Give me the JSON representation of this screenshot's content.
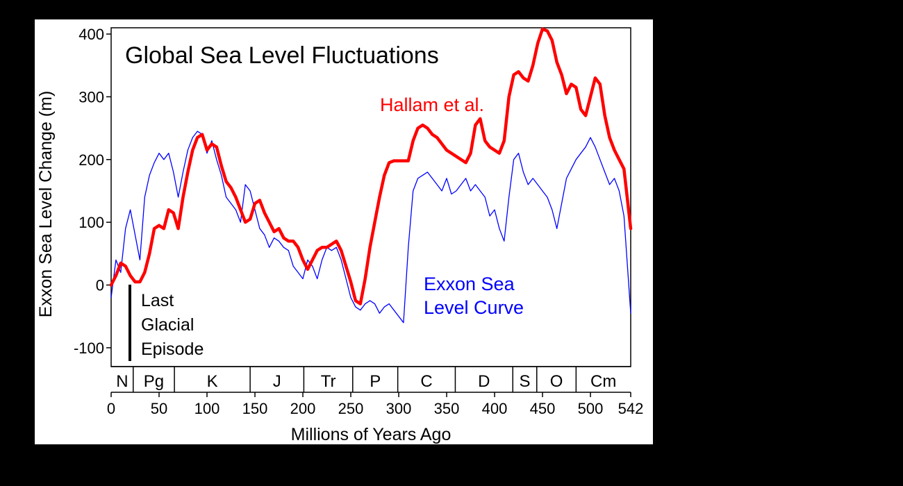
{
  "chart_data": {
    "type": "line",
    "title": "Global Sea Level Fluctuations",
    "xlabel": "Millions of Years Ago",
    "ylabel": "Exxon Sea Level Change (m)",
    "xlim": [
      0,
      542
    ],
    "ylim": [
      -130,
      410
    ],
    "x_ticks": [
      0,
      50,
      100,
      150,
      200,
      250,
      300,
      350,
      400,
      450,
      500,
      542
    ],
    "y_ticks": [
      -100,
      0,
      100,
      200,
      300,
      400
    ],
    "grid": false,
    "periods": [
      {
        "label": "N",
        "start": 0,
        "end": 23
      },
      {
        "label": "Pg",
        "start": 23,
        "end": 66
      },
      {
        "label": "K",
        "start": 66,
        "end": 145
      },
      {
        "label": "J",
        "start": 145,
        "end": 201
      },
      {
        "label": "Tr",
        "start": 201,
        "end": 252
      },
      {
        "label": "P",
        "start": 252,
        "end": 299
      },
      {
        "label": "C",
        "start": 299,
        "end": 359
      },
      {
        "label": "D",
        "start": 359,
        "end": 419
      },
      {
        "label": "S",
        "start": 419,
        "end": 444
      },
      {
        "label": "O",
        "start": 444,
        "end": 485
      },
      {
        "label": "Cm",
        "start": 485,
        "end": 542
      }
    ],
    "series": [
      {
        "name": "Hallam et al.",
        "color": "#ff0000",
        "x": [
          0,
          5,
          10,
          15,
          20,
          25,
          30,
          35,
          40,
          45,
          50,
          55,
          60,
          65,
          70,
          75,
          80,
          85,
          90,
          95,
          100,
          105,
          110,
          115,
          120,
          125,
          130,
          135,
          140,
          145,
          150,
          155,
          160,
          165,
          170,
          175,
          180,
          185,
          190,
          195,
          200,
          205,
          210,
          215,
          220,
          225,
          230,
          235,
          240,
          245,
          250,
          255,
          260,
          265,
          270,
          275,
          280,
          285,
          290,
          295,
          300,
          305,
          310,
          315,
          320,
          325,
          330,
          335,
          340,
          345,
          350,
          355,
          360,
          365,
          370,
          375,
          380,
          385,
          390,
          395,
          400,
          405,
          410,
          415,
          420,
          425,
          430,
          435,
          440,
          445,
          450,
          455,
          460,
          465,
          470,
          475,
          480,
          485,
          490,
          495,
          500,
          505,
          510,
          515,
          520,
          525,
          530,
          535,
          542
        ],
        "values": [
          0,
          15,
          35,
          30,
          15,
          5,
          5,
          20,
          50,
          90,
          95,
          90,
          120,
          115,
          90,
          140,
          180,
          215,
          235,
          240,
          215,
          225,
          220,
          190,
          165,
          155,
          140,
          120,
          100,
          105,
          130,
          135,
          115,
          100,
          85,
          90,
          75,
          70,
          70,
          60,
          40,
          25,
          40,
          55,
          60,
          60,
          65,
          70,
          55,
          30,
          5,
          -25,
          -30,
          10,
          60,
          100,
          140,
          175,
          195,
          198,
          198,
          198,
          198,
          230,
          250,
          255,
          250,
          240,
          235,
          225,
          215,
          210,
          205,
          200,
          195,
          210,
          255,
          265,
          230,
          220,
          215,
          210,
          230,
          300,
          335,
          340,
          330,
          325,
          350,
          385,
          408,
          405,
          390,
          355,
          335,
          305,
          320,
          315,
          280,
          270,
          300,
          330,
          320,
          270,
          235,
          215,
          200,
          185,
          90
        ]
      },
      {
        "name": "Exxon Sea Level Curve",
        "color": "#0000ff",
        "x": [
          0,
          5,
          10,
          15,
          20,
          25,
          30,
          35,
          40,
          45,
          50,
          55,
          60,
          65,
          70,
          75,
          80,
          85,
          90,
          95,
          100,
          105,
          110,
          115,
          120,
          125,
          130,
          135,
          140,
          145,
          150,
          155,
          160,
          165,
          170,
          175,
          180,
          185,
          190,
          195,
          200,
          205,
          210,
          215,
          220,
          225,
          230,
          235,
          240,
          245,
          250,
          255,
          260,
          265,
          270,
          275,
          280,
          285,
          290,
          295,
          300,
          305,
          310,
          315,
          320,
          325,
          330,
          335,
          340,
          345,
          350,
          355,
          360,
          365,
          370,
          375,
          380,
          385,
          390,
          395,
          400,
          405,
          410,
          415,
          420,
          425,
          430,
          435,
          440,
          445,
          450,
          455,
          460,
          465,
          470,
          475,
          480,
          485,
          490,
          495,
          500,
          505,
          510,
          515,
          520,
          525,
          530,
          535,
          542
        ],
        "values": [
          -20,
          40,
          20,
          90,
          120,
          80,
          40,
          140,
          175,
          195,
          210,
          200,
          210,
          180,
          140,
          180,
          215,
          235,
          245,
          240,
          210,
          230,
          200,
          175,
          140,
          130,
          120,
          100,
          160,
          150,
          120,
          90,
          80,
          60,
          75,
          70,
          60,
          55,
          30,
          20,
          10,
          40,
          30,
          10,
          40,
          60,
          55,
          60,
          40,
          10,
          -20,
          -35,
          -40,
          -30,
          -25,
          -30,
          -45,
          -35,
          -30,
          -40,
          -50,
          -60,
          60,
          150,
          170,
          175,
          180,
          170,
          160,
          150,
          170,
          145,
          150,
          160,
          170,
          150,
          160,
          150,
          140,
          110,
          120,
          90,
          70,
          140,
          200,
          210,
          180,
          160,
          170,
          160,
          150,
          140,
          120,
          90,
          130,
          170,
          185,
          200,
          210,
          220,
          235,
          220,
          200,
          180,
          160,
          170,
          150,
          110,
          -45
        ]
      }
    ],
    "annotations": {
      "hallam_label": "Hallam et al.",
      "exxon_label_line1": "Exxon Sea",
      "exxon_label_line2": "Level Curve",
      "glacial_line1": "Last",
      "glacial_line2": "Glacial",
      "glacial_line3": "Episode"
    },
    "legend": "inline labels"
  }
}
